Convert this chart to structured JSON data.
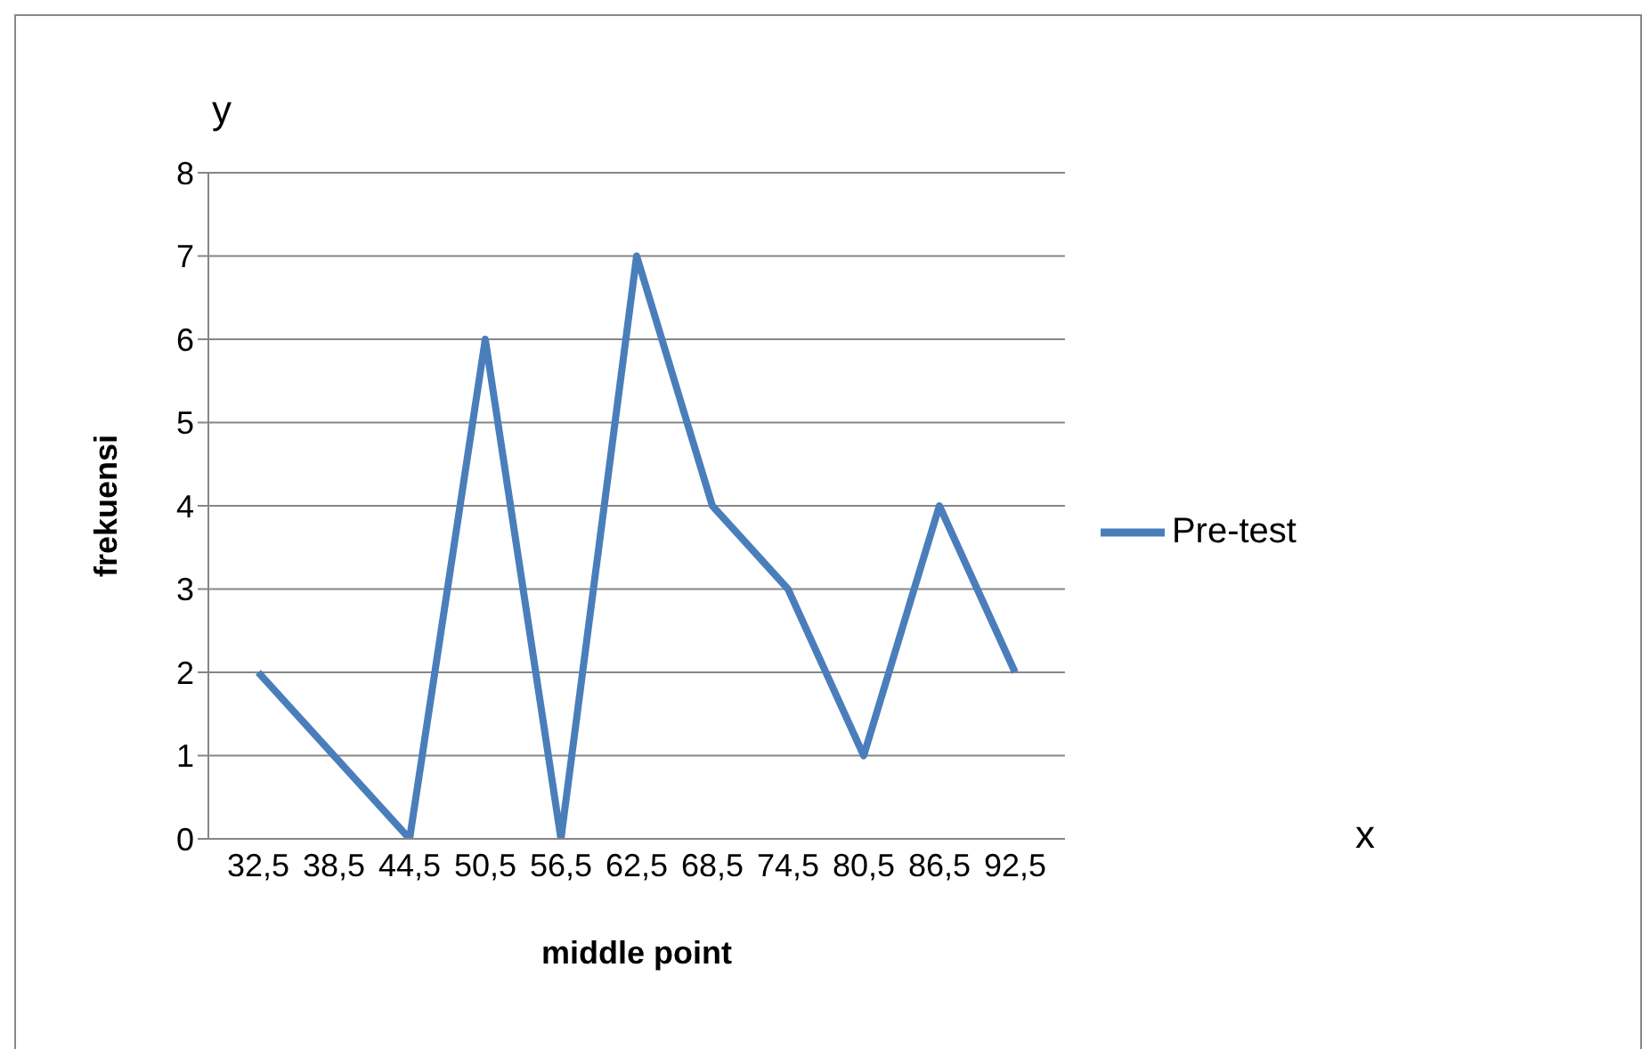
{
  "chart_data": {
    "type": "line",
    "xlabel": "middle point",
    "ylabel": "frekuensi",
    "categories": [
      "32,5",
      "38,5",
      "44,5",
      "50,5",
      "56,5",
      "62,5",
      "68,5",
      "74,5",
      "80,5",
      "86,5",
      "92,5"
    ],
    "series": [
      {
        "name": "Pre-test",
        "color": "#4a7ebb",
        "values": [
          2,
          1,
          0,
          6,
          0,
          7,
          4,
          3,
          1,
          4,
          2
        ]
      }
    ],
    "ylim": [
      0,
      8
    ],
    "yticks": [
      0,
      1,
      2,
      3,
      4,
      5,
      6,
      7,
      8
    ],
    "grid": "y",
    "legend": "right",
    "marker": "none",
    "annotations": [
      "y",
      "x"
    ]
  }
}
